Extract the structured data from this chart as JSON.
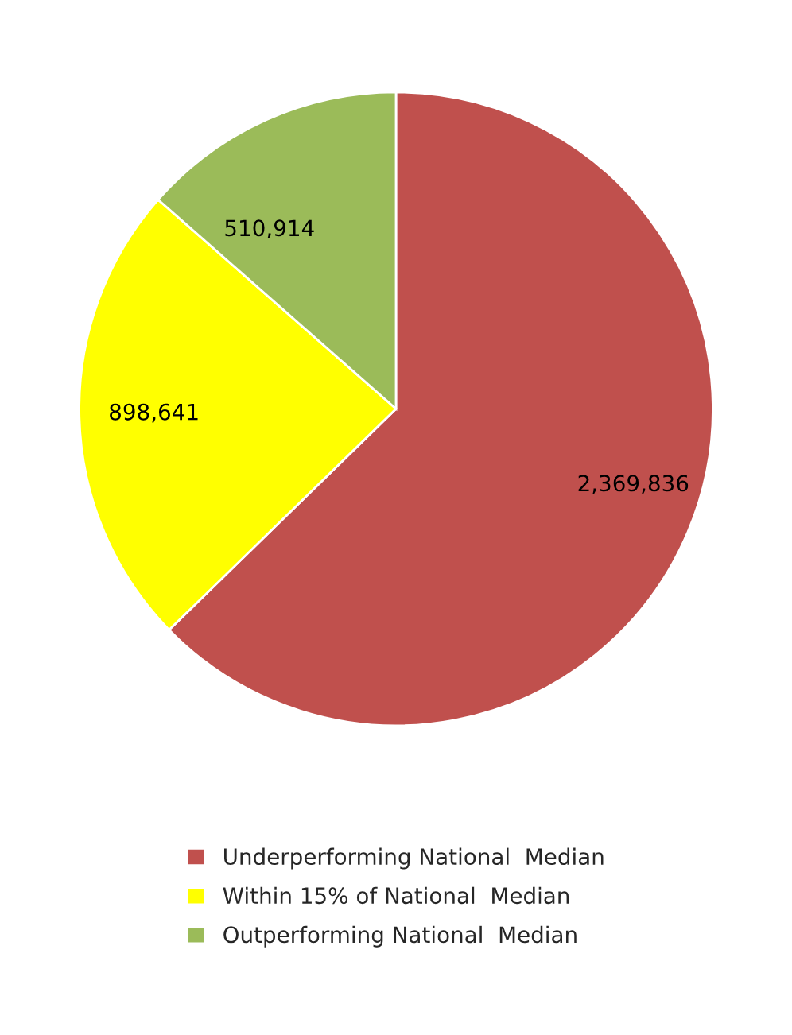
{
  "chart_data": {
    "type": "pie",
    "categories": [
      "Underperforming National  Median",
      "Within 15% of National  Median",
      "Outperforming National  Median"
    ],
    "values": [
      2369836,
      898641,
      510914
    ],
    "colors": [
      "#c0504d",
      "#ffff00",
      "#9bbb59"
    ],
    "value_labels": [
      "2,369,836",
      "898,641",
      "510,914"
    ],
    "legend": "bottom"
  }
}
